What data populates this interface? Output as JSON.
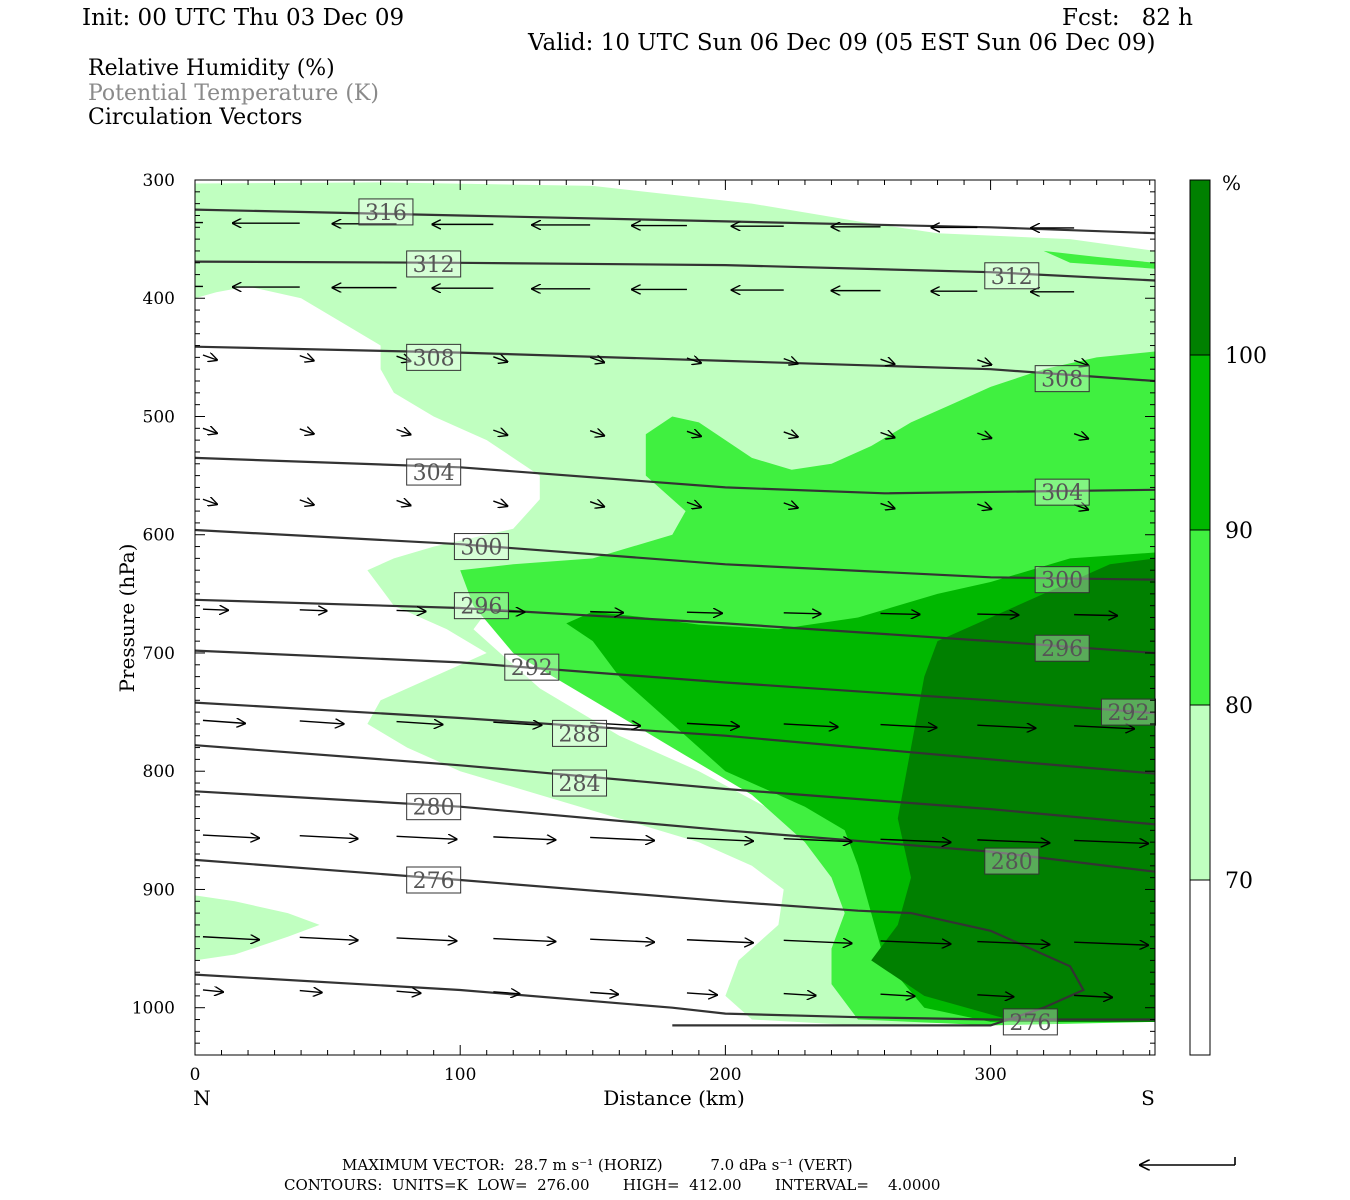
{
  "header": {
    "init": "Init: 00 UTC Thu 03 Dec 09",
    "fcst": "Fcst:   82 h",
    "valid": "Valid: 10 UTC Sun 06 Dec 09 (05 EST Sun 06 Dec 09)"
  },
  "legend": {
    "line1": "Relative Humidity (%)",
    "line2": "Potential Temperature (K)",
    "line3": "Circulation Vectors"
  },
  "colors": {
    "rh70": "#c0ffc0",
    "rh80": "#40f040",
    "rh90": "#00b800",
    "rh100": "#008000",
    "theta_line": "#333333",
    "theta_label": "#555555"
  },
  "footer": {
    "line1": "MAXIMUM VECTOR:  28.7 m s⁻¹ (HORIZ)          7.0 dPa s⁻¹ (VERT)",
    "line2": "CONTOURS:  UNITS=K  LOW=  276.00       HIGH=  412.00       INTERVAL=    4.0000"
  },
  "chart_data": {
    "type": "cross-section",
    "xlabel": "Distance (km)",
    "ylabel": "Pressure (hPa)",
    "xlim": [
      0,
      362
    ],
    "ylim": [
      1040,
      300
    ],
    "x_ticks": [
      "0",
      "100",
      "200",
      "300"
    ],
    "y_ticks": [
      "300",
      "400",
      "500",
      "600",
      "700",
      "800",
      "900",
      "1000"
    ],
    "x_end_labels": {
      "left": "N",
      "right": "S"
    },
    "colorbar": {
      "unit": "%",
      "levels": [
        "70",
        "80",
        "90",
        "100"
      ]
    },
    "rh_regions": [
      {
        "level": 70,
        "points": [
          [
            0,
            303
          ],
          [
            70,
            302
          ],
          [
            150,
            305
          ],
          [
            210,
            320
          ],
          [
            250,
            335
          ],
          [
            280,
            345
          ],
          [
            330,
            350
          ],
          [
            362,
            360
          ],
          [
            362,
            450
          ],
          [
            330,
            470
          ],
          [
            300,
            490
          ],
          [
            280,
            510
          ],
          [
            265,
            530
          ],
          [
            245,
            545
          ],
          [
            230,
            560
          ],
          [
            200,
            590
          ],
          [
            170,
            615
          ],
          [
            130,
            640
          ],
          [
            115,
            650
          ],
          [
            105,
            680
          ],
          [
            130,
            730
          ],
          [
            160,
            770
          ],
          [
            190,
            800
          ],
          [
            215,
            830
          ],
          [
            230,
            860
          ],
          [
            240,
            890
          ],
          [
            255,
            920
          ],
          [
            270,
            960
          ],
          [
            290,
            990
          ],
          [
            300,
            1012
          ],
          [
            250,
            1015
          ],
          [
            210,
            1010
          ],
          [
            200,
            990
          ],
          [
            205,
            960
          ],
          [
            220,
            930
          ],
          [
            222,
            900
          ],
          [
            210,
            880
          ],
          [
            190,
            860
          ],
          [
            160,
            840
          ],
          [
            130,
            820
          ],
          [
            100,
            800
          ],
          [
            80,
            780
          ],
          [
            65,
            760
          ],
          [
            70,
            740
          ],
          [
            90,
            720
          ],
          [
            110,
            700
          ],
          [
            95,
            680
          ],
          [
            75,
            660
          ],
          [
            65,
            630
          ],
          [
            75,
            620
          ],
          [
            90,
            610
          ],
          [
            120,
            595
          ],
          [
            130,
            570
          ],
          [
            130,
            550
          ],
          [
            110,
            520
          ],
          [
            90,
            500
          ],
          [
            75,
            480
          ],
          [
            70,
            460
          ],
          [
            70,
            440
          ],
          [
            55,
            420
          ],
          [
            40,
            400
          ],
          [
            20,
            390
          ],
          [
            8,
            395
          ],
          [
            0,
            400
          ]
        ]
      },
      {
        "level": 70,
        "points": [
          [
            0,
            905
          ],
          [
            15,
            910
          ],
          [
            35,
            920
          ],
          [
            47,
            930
          ],
          [
            35,
            940
          ],
          [
            15,
            955
          ],
          [
            0,
            960
          ]
        ]
      },
      {
        "level": 80,
        "points": [
          [
            362,
            445
          ],
          [
            340,
            450
          ],
          [
            320,
            460
          ],
          [
            300,
            475
          ],
          [
            285,
            490
          ],
          [
            270,
            505
          ],
          [
            255,
            525
          ],
          [
            240,
            540
          ],
          [
            225,
            545
          ],
          [
            210,
            535
          ],
          [
            200,
            520
          ],
          [
            190,
            505
          ],
          [
            180,
            500
          ],
          [
            170,
            515
          ],
          [
            170,
            550
          ],
          [
            185,
            580
          ],
          [
            180,
            600
          ],
          [
            150,
            620
          ],
          [
            120,
            625
          ],
          [
            100,
            630
          ],
          [
            105,
            660
          ],
          [
            120,
            700
          ],
          [
            150,
            740
          ],
          [
            180,
            780
          ],
          [
            210,
            820
          ],
          [
            230,
            860
          ],
          [
            240,
            890
          ],
          [
            245,
            920
          ],
          [
            240,
            950
          ],
          [
            240,
            980
          ],
          [
            250,
            1010
          ],
          [
            300,
            1015
          ],
          [
            362,
            1012
          ]
        ]
      },
      {
        "level": 80,
        "points": [
          [
            362,
            370
          ],
          [
            340,
            365
          ],
          [
            320,
            360
          ],
          [
            330,
            370
          ],
          [
            362,
            375
          ]
        ]
      },
      {
        "level": 90,
        "points": [
          [
            362,
            615
          ],
          [
            330,
            620
          ],
          [
            300,
            640
          ],
          [
            280,
            650
          ],
          [
            250,
            670
          ],
          [
            220,
            680
          ],
          [
            190,
            676
          ],
          [
            170,
            670
          ],
          [
            150,
            665
          ],
          [
            140,
            675
          ],
          [
            150,
            690
          ],
          [
            160,
            720
          ],
          [
            180,
            760
          ],
          [
            200,
            800
          ],
          [
            230,
            830
          ],
          [
            245,
            850
          ],
          [
            250,
            880
          ],
          [
            255,
            920
          ],
          [
            260,
            960
          ],
          [
            275,
            1000
          ],
          [
            300,
            1012
          ],
          [
            362,
            1012
          ]
        ]
      },
      {
        "level": 100,
        "points": [
          [
            362,
            620
          ],
          [
            345,
            625
          ],
          [
            330,
            640
          ],
          [
            300,
            670
          ],
          [
            280,
            690
          ],
          [
            275,
            720
          ],
          [
            270,
            780
          ],
          [
            265,
            840
          ],
          [
            270,
            890
          ],
          [
            265,
            930
          ],
          [
            255,
            960
          ],
          [
            275,
            990
          ],
          [
            310,
            1012
          ],
          [
            362,
            1012
          ]
        ]
      },
      {
        "level": 100,
        "points": [
          [
            325,
            965
          ],
          [
            362,
            968
          ],
          [
            362,
            985
          ],
          [
            330,
            985
          ]
        ]
      }
    ],
    "theta_contours": [
      {
        "value": "316",
        "points": [
          [
            0,
            325
          ],
          [
            100,
            330
          ],
          [
            200,
            335
          ],
          [
            300,
            340
          ],
          [
            362,
            345
          ]
        ],
        "labels": [
          [
            72,
            327
          ]
        ]
      },
      {
        "value": "312",
        "points": [
          [
            0,
            369
          ],
          [
            100,
            370
          ],
          [
            200,
            372
          ],
          [
            300,
            378
          ],
          [
            362,
            385
          ]
        ],
        "labels": [
          [
            90,
            371
          ],
          [
            308,
            381
          ]
        ]
      },
      {
        "value": "308",
        "points": [
          [
            0,
            441
          ],
          [
            100,
            446
          ],
          [
            200,
            453
          ],
          [
            300,
            460
          ],
          [
            362,
            470
          ]
        ],
        "labels": [
          [
            90,
            450
          ],
          [
            327,
            468
          ]
        ]
      },
      {
        "value": "304",
        "points": [
          [
            0,
            535
          ],
          [
            100,
            543
          ],
          [
            200,
            560
          ],
          [
            260,
            565
          ],
          [
            362,
            562
          ]
        ],
        "labels": [
          [
            90,
            547
          ],
          [
            327,
            564
          ]
        ]
      },
      {
        "value": "300",
        "points": [
          [
            0,
            596
          ],
          [
            100,
            608
          ],
          [
            200,
            625
          ],
          [
            300,
            636
          ],
          [
            362,
            638
          ]
        ],
        "labels": [
          [
            108,
            610
          ],
          [
            327,
            638
          ]
        ]
      },
      {
        "value": "296",
        "points": [
          [
            0,
            655
          ],
          [
            100,
            662
          ],
          [
            200,
            675
          ],
          [
            300,
            690
          ],
          [
            362,
            700
          ]
        ],
        "labels": [
          [
            108,
            660
          ],
          [
            327,
            696
          ]
        ]
      },
      {
        "value": "292",
        "points": [
          [
            0,
            698
          ],
          [
            100,
            708
          ],
          [
            200,
            725
          ],
          [
            300,
            740
          ],
          [
            362,
            751
          ]
        ],
        "labels": [
          [
            127,
            712
          ],
          [
            352,
            750
          ]
        ]
      },
      {
        "value": "288",
        "points": [
          [
            0,
            742
          ],
          [
            100,
            755
          ],
          [
            200,
            770
          ],
          [
            300,
            790
          ],
          [
            362,
            802
          ]
        ],
        "labels": [
          [
            145,
            768
          ]
        ]
      },
      {
        "value": "284",
        "points": [
          [
            0,
            778
          ],
          [
            100,
            795
          ],
          [
            200,
            815
          ],
          [
            300,
            832
          ],
          [
            362,
            845
          ]
        ],
        "labels": [
          [
            145,
            810
          ]
        ]
      },
      {
        "value": "280",
        "points": [
          [
            0,
            817
          ],
          [
            100,
            830
          ],
          [
            200,
            850
          ],
          [
            300,
            868
          ],
          [
            362,
            885
          ]
        ],
        "labels": [
          [
            90,
            830
          ],
          [
            308,
            876
          ]
        ]
      },
      {
        "value": "276",
        "points": [
          [
            0,
            875
          ],
          [
            100,
            892
          ],
          [
            200,
            910
          ],
          [
            250,
            918
          ],
          [
            270,
            920
          ],
          [
            300,
            935
          ],
          [
            330,
            965
          ],
          [
            335,
            985
          ],
          [
            320,
            1000
          ],
          [
            300,
            1015
          ],
          [
            200,
            1015
          ],
          [
            180,
            1015
          ]
        ],
        "labels": [
          [
            90,
            892
          ],
          [
            315,
            1012
          ]
        ]
      },
      {
        "value": "",
        "points": [
          [
            0,
            972
          ],
          [
            100,
            985
          ],
          [
            180,
            1000
          ],
          [
            200,
            1005
          ],
          [
            250,
            1008
          ],
          [
            300,
            1010
          ],
          [
            362,
            1010
          ]
        ],
        "labels": []
      }
    ],
    "vectors_row_pressures": [
      336,
      390,
      448,
      510,
      570,
      663,
      757,
      854,
      940,
      985
    ],
    "vectors_note": "wind vectors shown as arrows; leftward aloft, rightward in low levels"
  }
}
